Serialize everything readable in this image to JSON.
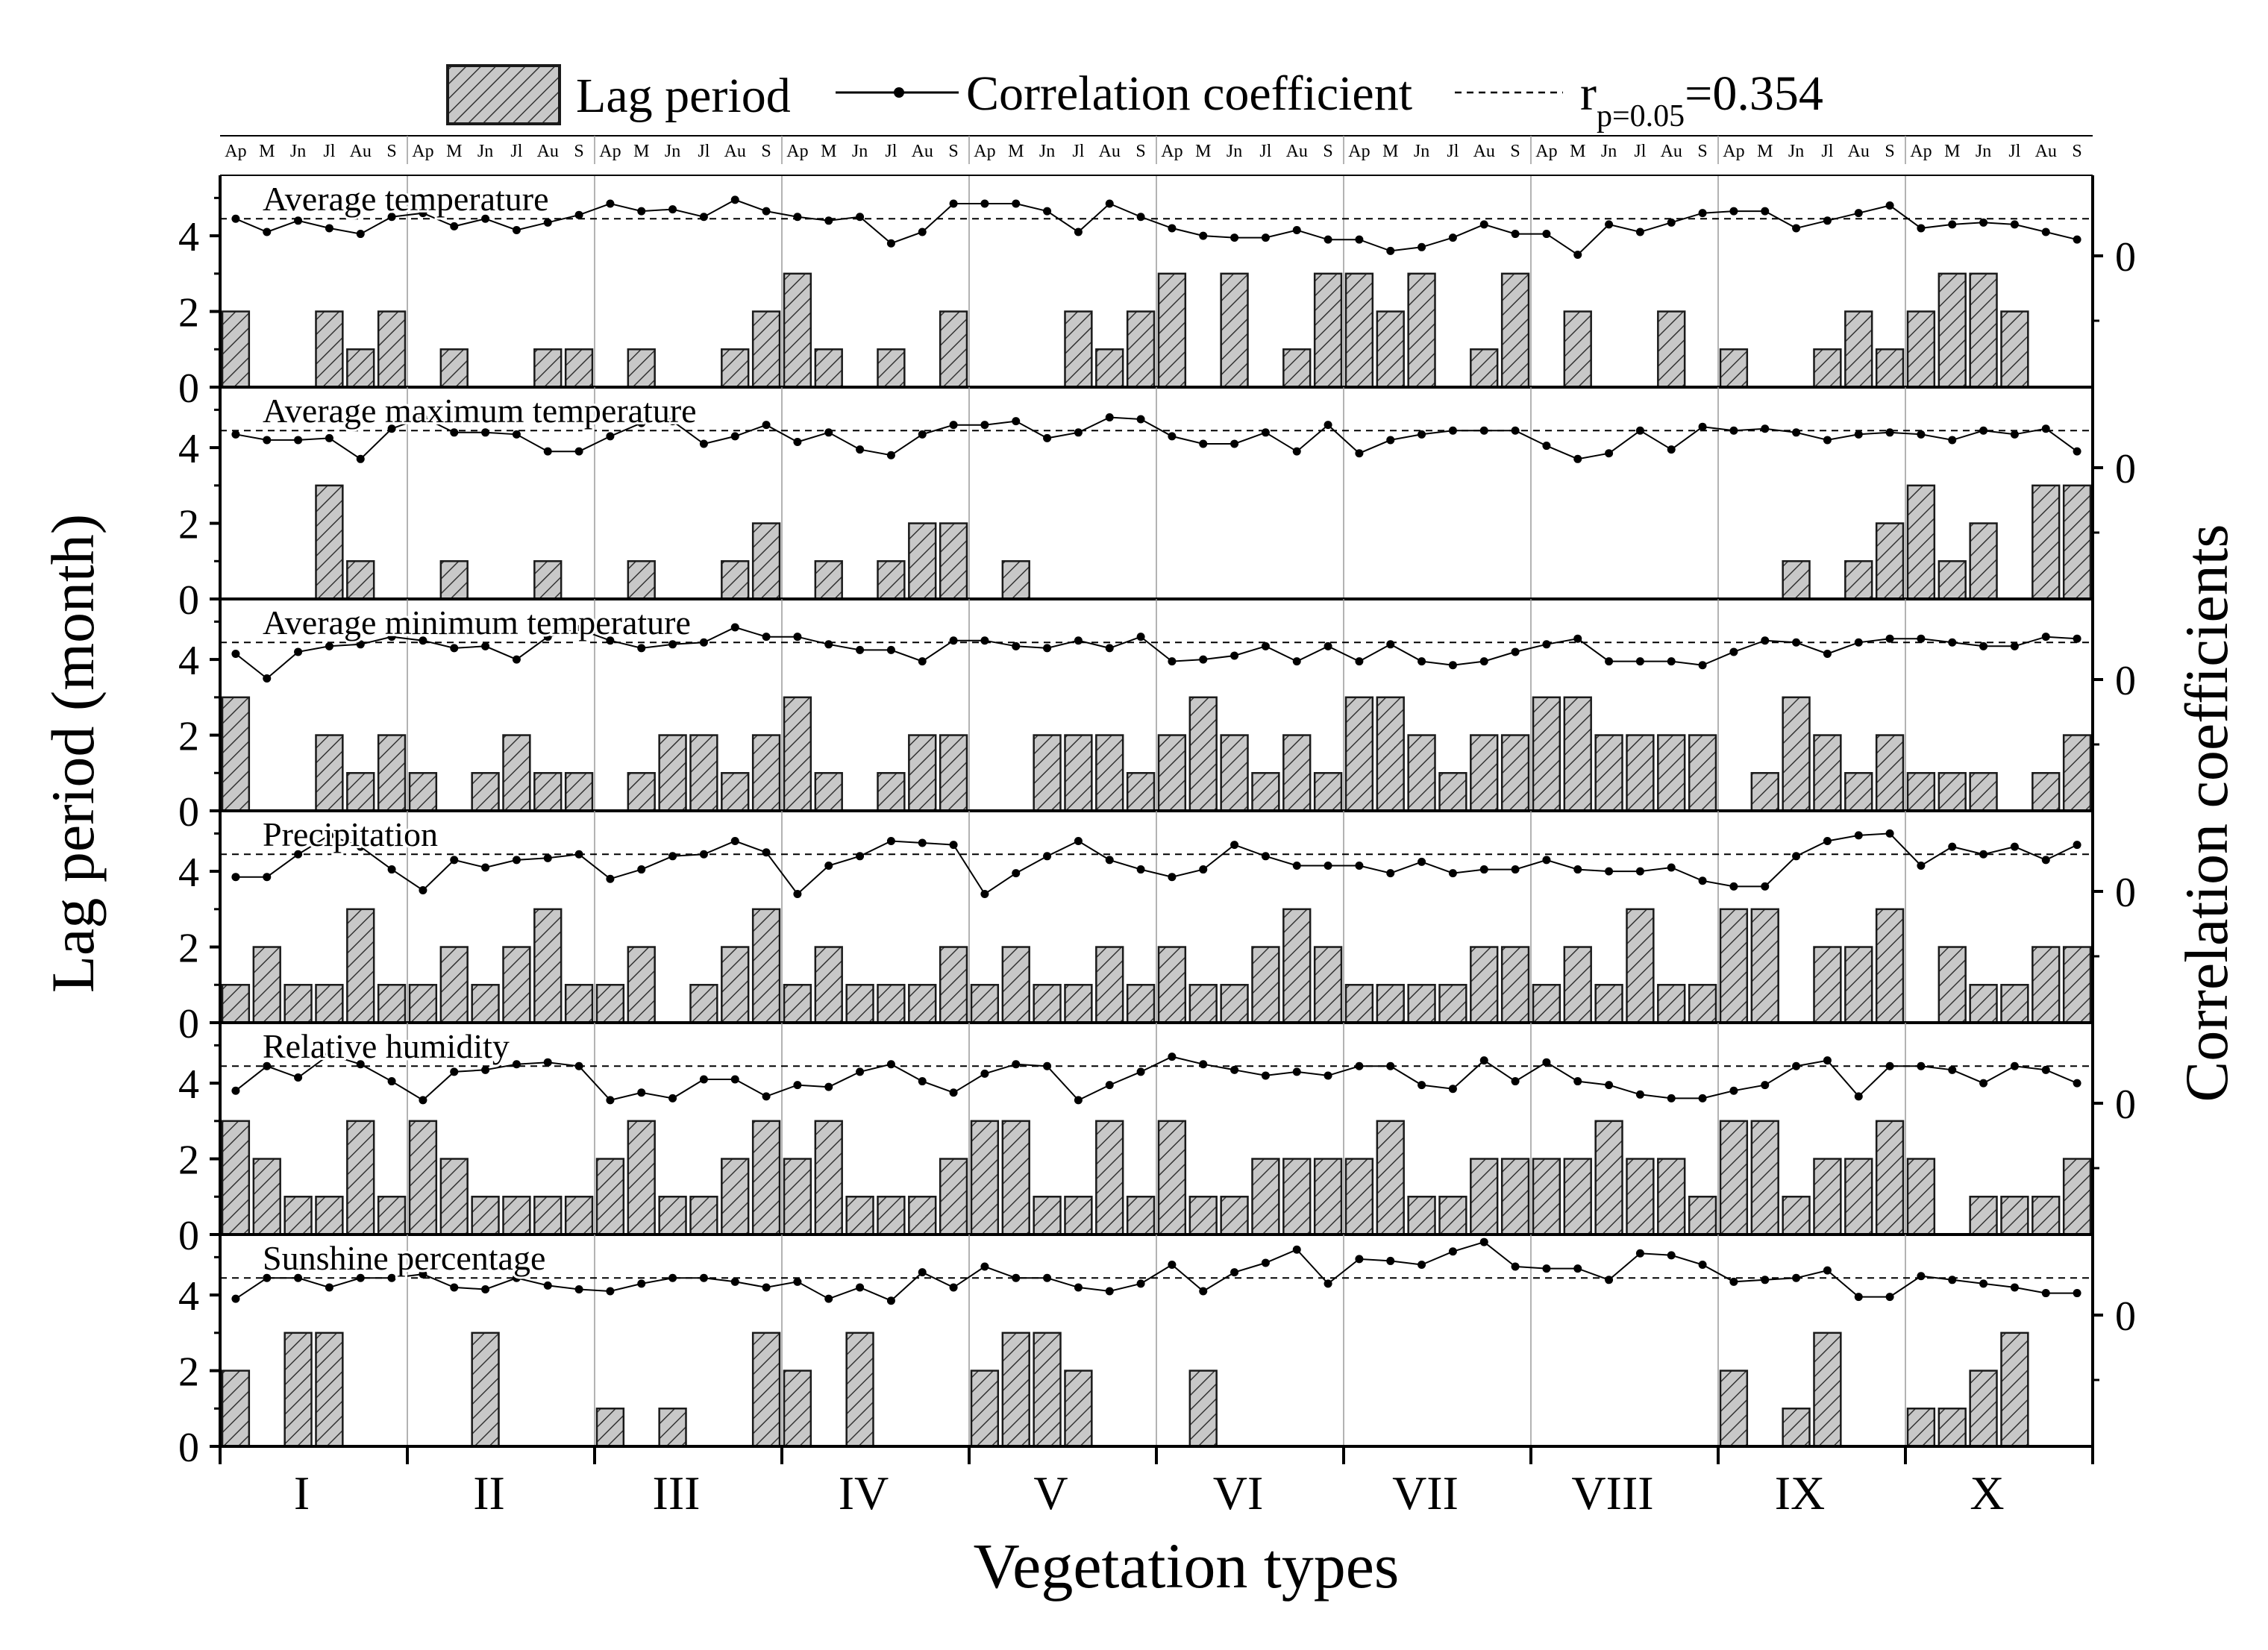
{
  "colors": {
    "bar_fill": "#c8c8c8",
    "bar_stroke": "#1a1a1a",
    "line": "#000000",
    "threshold": "#000000",
    "divider": "#9a9a9a"
  },
  "chart_data": {
    "type": "bar",
    "legend": {
      "bar_label": "Lag period",
      "line_label": "Correlation coefficient",
      "threshold_label_prefix": "r",
      "threshold_label_subscript": "p=0.05",
      "threshold_label_suffix": "=0.354"
    },
    "month_labels": [
      "Ap",
      "M",
      "Jn",
      "Jl",
      "Au",
      "S"
    ],
    "group_labels": [
      "I",
      "II",
      "III",
      "IV",
      "V",
      "VI",
      "VII",
      "VIII",
      "IX",
      "X"
    ],
    "xlabel": "Vegetation types",
    "ylabel_left": "Lag period (month)",
    "ylabel_right": "Correlation coefficients",
    "left_ticks": [
      "0",
      "2",
      "4"
    ],
    "right_tick": "0",
    "ylim_left": [
      0,
      5.5
    ],
    "threshold_level": 4.45,
    "panels": [
      {
        "title": "Average temperature",
        "lag": [
          2,
          0,
          0,
          2,
          1,
          2,
          0,
          1,
          0,
          0,
          1,
          1,
          0,
          1,
          0,
          0,
          1,
          2,
          3,
          1,
          0,
          1,
          0,
          2,
          0,
          0,
          0,
          2,
          1,
          2,
          3,
          0,
          3,
          0,
          1,
          3,
          3,
          2,
          3,
          0,
          1,
          3,
          0,
          2,
          0,
          0,
          2,
          0,
          1,
          0,
          0,
          1,
          2,
          1,
          2,
          3,
          3,
          2,
          0,
          0
        ],
        "corr": [
          4.45,
          4.1,
          4.4,
          4.2,
          4.05,
          4.5,
          4.6,
          4.25,
          4.45,
          4.15,
          4.35,
          4.55,
          4.85,
          4.65,
          4.7,
          4.5,
          4.95,
          4.65,
          4.5,
          4.4,
          4.5,
          3.8,
          4.1,
          4.85,
          4.85,
          4.85,
          4.65,
          4.1,
          4.85,
          4.5,
          4.2,
          4.0,
          3.95,
          3.95,
          4.15,
          3.9,
          3.9,
          3.6,
          3.7,
          3.95,
          4.3,
          4.05,
          4.05,
          3.5,
          4.3,
          4.1,
          4.35,
          4.6,
          4.65,
          4.65,
          4.2,
          4.4,
          4.6,
          4.8,
          4.2,
          4.3,
          4.35,
          4.3,
          4.1,
          3.9
        ]
      },
      {
        "title": "Average maximum temperature",
        "lag": [
          0,
          0,
          0,
          3,
          1,
          0,
          0,
          1,
          0,
          0,
          1,
          0,
          0,
          1,
          0,
          0,
          1,
          2,
          0,
          1,
          0,
          1,
          2,
          2,
          0,
          1,
          0,
          0,
          0,
          0,
          0,
          0,
          0,
          0,
          0,
          0,
          0,
          0,
          0,
          0,
          0,
          0,
          0,
          0,
          0,
          0,
          0,
          0,
          0,
          0,
          1,
          0,
          1,
          2,
          3,
          1,
          2,
          0,
          3,
          3
        ],
        "corr": [
          4.35,
          4.2,
          4.2,
          4.25,
          3.7,
          4.5,
          4.8,
          4.4,
          4.4,
          4.35,
          3.9,
          3.9,
          4.3,
          4.65,
          4.7,
          4.1,
          4.3,
          4.6,
          4.15,
          4.4,
          3.95,
          3.8,
          4.35,
          4.6,
          4.6,
          4.7,
          4.25,
          4.4,
          4.8,
          4.75,
          4.3,
          4.1,
          4.1,
          4.4,
          3.9,
          4.6,
          3.85,
          4.2,
          4.35,
          4.45,
          4.45,
          4.45,
          4.05,
          3.7,
          3.85,
          4.45,
          3.95,
          4.55,
          4.45,
          4.5,
          4.4,
          4.2,
          4.35,
          4.4,
          4.35,
          4.2,
          4.45,
          4.35,
          4.5,
          3.9
        ]
      },
      {
        "title": "Average minimum temperature",
        "lag": [
          3,
          0,
          0,
          2,
          1,
          2,
          1,
          0,
          1,
          2,
          1,
          1,
          0,
          1,
          2,
          2,
          1,
          2,
          3,
          1,
          0,
          1,
          2,
          2,
          0,
          0,
          2,
          2,
          2,
          1,
          2,
          3,
          2,
          1,
          2,
          1,
          3,
          3,
          2,
          1,
          2,
          2,
          3,
          3,
          2,
          2,
          2,
          2,
          0,
          1,
          3,
          2,
          1,
          2,
          1,
          1,
          1,
          0,
          1,
          2
        ],
        "corr": [
          4.15,
          3.5,
          4.2,
          4.35,
          4.4,
          4.6,
          4.5,
          4.3,
          4.35,
          4.0,
          4.6,
          4.8,
          4.5,
          4.3,
          4.4,
          4.45,
          4.85,
          4.6,
          4.6,
          4.4,
          4.25,
          4.25,
          3.95,
          4.5,
          4.5,
          4.35,
          4.3,
          4.5,
          4.3,
          4.6,
          3.95,
          4.0,
          4.1,
          4.35,
          3.95,
          4.35,
          3.95,
          4.4,
          3.95,
          3.85,
          3.95,
          4.2,
          4.4,
          4.55,
          3.95,
          3.95,
          3.95,
          3.85,
          4.2,
          4.5,
          4.45,
          4.15,
          4.45,
          4.55,
          4.55,
          4.45,
          4.35,
          4.35,
          4.6,
          4.55
        ]
      },
      {
        "title": "Precipitation",
        "lag": [
          1,
          2,
          1,
          1,
          3,
          1,
          1,
          2,
          1,
          2,
          3,
          1,
          1,
          2,
          0,
          1,
          2,
          3,
          1,
          2,
          1,
          1,
          1,
          2,
          1,
          2,
          1,
          1,
          2,
          1,
          2,
          1,
          1,
          2,
          3,
          2,
          1,
          1,
          1,
          1,
          2,
          2,
          1,
          2,
          1,
          3,
          1,
          1,
          3,
          3,
          0,
          2,
          2,
          3,
          0,
          2,
          1,
          1,
          2,
          2
        ],
        "corr": [
          3.85,
          3.85,
          4.45,
          4.95,
          4.65,
          4.05,
          3.5,
          4.3,
          4.1,
          4.3,
          4.35,
          4.45,
          3.8,
          4.05,
          4.4,
          4.45,
          4.8,
          4.5,
          3.4,
          4.15,
          4.4,
          4.8,
          4.75,
          4.7,
          3.4,
          3.95,
          4.4,
          4.8,
          4.3,
          4.05,
          3.85,
          4.05,
          4.7,
          4.4,
          4.15,
          4.15,
          4.15,
          3.95,
          4.25,
          3.95,
          4.05,
          4.05,
          4.3,
          4.05,
          4.0,
          4.0,
          4.1,
          3.75,
          3.6,
          3.6,
          4.4,
          4.8,
          4.95,
          5.0,
          4.15,
          4.65,
          4.45,
          4.65,
          4.3,
          4.7
        ]
      },
      {
        "title": "Relative humidity",
        "lag": [
          3,
          2,
          1,
          1,
          3,
          1,
          3,
          2,
          1,
          1,
          1,
          1,
          2,
          3,
          1,
          1,
          2,
          3,
          2,
          3,
          1,
          1,
          1,
          2,
          3,
          3,
          1,
          1,
          3,
          1,
          3,
          1,
          1,
          2,
          2,
          2,
          2,
          3,
          1,
          1,
          2,
          2,
          2,
          2,
          3,
          2,
          2,
          1,
          3,
          3,
          1,
          2,
          2,
          3,
          2,
          0,
          1,
          1,
          1,
          2
        ],
        "corr": [
          3.8,
          4.45,
          4.15,
          4.75,
          4.5,
          4.05,
          3.55,
          4.3,
          4.35,
          4.5,
          4.55,
          4.45,
          3.55,
          3.75,
          3.6,
          4.1,
          4.1,
          3.65,
          3.95,
          3.9,
          4.3,
          4.5,
          4.05,
          3.75,
          4.25,
          4.5,
          4.45,
          3.55,
          3.95,
          4.3,
          4.7,
          4.5,
          4.35,
          4.2,
          4.3,
          4.2,
          4.45,
          4.45,
          3.95,
          3.85,
          4.6,
          4.05,
          4.55,
          4.05,
          3.95,
          3.7,
          3.6,
          3.6,
          3.8,
          3.95,
          4.45,
          4.6,
          3.65,
          4.45,
          4.45,
          4.35,
          4.0,
          4.45,
          4.35,
          4.0
        ]
      },
      {
        "title": "Sunshine percentage",
        "lag": [
          2,
          0,
          3,
          3,
          0,
          0,
          0,
          0,
          3,
          0,
          0,
          0,
          1,
          0,
          1,
          0,
          0,
          3,
          2,
          0,
          3,
          0,
          0,
          0,
          2,
          3,
          3,
          2,
          0,
          0,
          0,
          2,
          0,
          0,
          0,
          0,
          0,
          0,
          0,
          0,
          0,
          0,
          0,
          0,
          0,
          0,
          0,
          0,
          2,
          0,
          1,
          3,
          0,
          0,
          1,
          1,
          2,
          3,
          0,
          0
        ],
        "corr": [
          3.9,
          4.45,
          4.45,
          4.2,
          4.45,
          4.45,
          4.55,
          4.2,
          4.15,
          4.45,
          4.25,
          4.15,
          4.1,
          4.3,
          4.45,
          4.45,
          4.35,
          4.2,
          4.35,
          3.9,
          4.2,
          3.85,
          4.6,
          4.2,
          4.75,
          4.45,
          4.45,
          4.2,
          4.1,
          4.3,
          4.8,
          4.1,
          4.6,
          4.85,
          5.2,
          4.3,
          4.95,
          4.9,
          4.8,
          5.15,
          5.4,
          4.75,
          4.7,
          4.7,
          4.4,
          5.1,
          5.05,
          4.8,
          4.35,
          4.4,
          4.45,
          4.65,
          3.95,
          3.95,
          4.5,
          4.4,
          4.3,
          4.2,
          4.05,
          4.05
        ]
      }
    ]
  }
}
